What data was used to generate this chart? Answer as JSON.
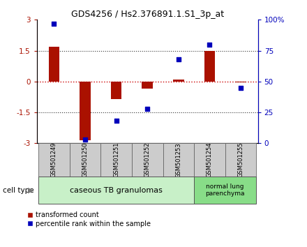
{
  "title": "GDS4256 / Hs2.376891.1.S1_3p_at",
  "samples": [
    "GSM501249",
    "GSM501250",
    "GSM501251",
    "GSM501252",
    "GSM501253",
    "GSM501254",
    "GSM501255"
  ],
  "transformed_counts": [
    1.7,
    -2.85,
    -0.85,
    -0.35,
    0.1,
    1.5,
    -0.05
  ],
  "percentile_ranks": [
    97,
    3,
    18,
    28,
    68,
    80,
    45
  ],
  "ylim_left": [
    -3,
    3
  ],
  "ylim_right": [
    0,
    100
  ],
  "yticks_left": [
    -3,
    -1.5,
    0,
    1.5,
    3
  ],
  "yticks_right": [
    0,
    25,
    50,
    75,
    100
  ],
  "ytick_labels_left": [
    "-3",
    "-1.5",
    "0",
    "1.5",
    "3"
  ],
  "ytick_labels_right": [
    "0",
    "25",
    "50",
    "75",
    "100%"
  ],
  "bar_color": "#aa1100",
  "dot_color": "#0000bb",
  "zero_line_color": "#cc0000",
  "dotted_line_color": "#333333",
  "bg_color": "#ffffff",
  "group1_label": "caseous TB granulomas",
  "group1_indices": [
    0,
    1,
    2,
    3,
    4
  ],
  "group2_label": "normal lung\nparenchyma",
  "group2_indices": [
    5,
    6
  ],
  "group1_color": "#c8f0c8",
  "group2_color": "#88dd88",
  "sample_box_color": "#cccccc",
  "cell_type_label": "cell type",
  "legend_bar_label": "transformed count",
  "legend_dot_label": "percentile rank within the sample",
  "bar_width": 0.35
}
